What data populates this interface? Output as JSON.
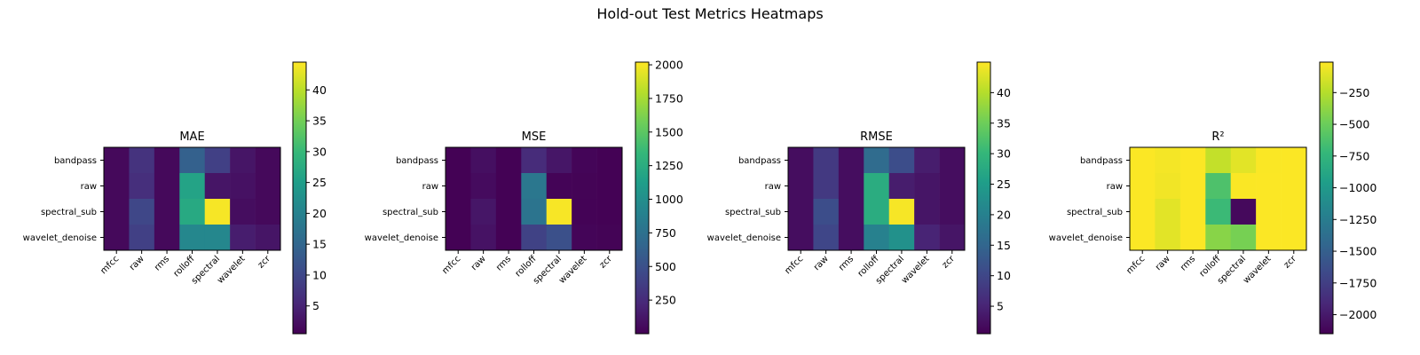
{
  "figure": {
    "title": "Hold-out Test Metrics Heatmaps"
  },
  "colormap": [
    "#440154",
    "#482878",
    "#3e4989",
    "#31688e",
    "#26828e",
    "#1f9e89",
    "#35b779",
    "#6ece58",
    "#b5de2b",
    "#fde725"
  ],
  "chart_data": [
    {
      "type": "heatmap",
      "title": "MAE",
      "rows": [
        "bandpass",
        "raw",
        "spectral_sub",
        "wavelet_denoise"
      ],
      "columns": [
        "mfcc",
        "raw",
        "rms",
        "rolloff",
        "spectral",
        "wavelet",
        "zcr"
      ],
      "values": [
        [
          1.5,
          7,
          1.5,
          14,
          9,
          3,
          1.5
        ],
        [
          1.5,
          6.5,
          1.5,
          26,
          3,
          2.5,
          1.5
        ],
        [
          1.5,
          10,
          1.5,
          27,
          44,
          2,
          1.5
        ],
        [
          1.5,
          9,
          1.5,
          21,
          21,
          4,
          3
        ]
      ],
      "colorbar": {
        "min": 0.5,
        "max": 44.5,
        "ticks": [
          "5",
          "10",
          "15",
          "20",
          "25",
          "30",
          "35",
          "40"
        ],
        "tick_values": [
          5,
          10,
          15,
          20,
          25,
          30,
          35,
          40
        ]
      }
    },
    {
      "type": "heatmap",
      "title": "MSE",
      "rows": [
        "bandpass",
        "raw",
        "spectral_sub",
        "wavelet_denoise"
      ],
      "columns": [
        "mfcc",
        "raw",
        "rms",
        "rolloff",
        "spectral",
        "wavelet",
        "zcr"
      ],
      "values": [
        [
          5,
          80,
          5,
          250,
          120,
          25,
          5
        ],
        [
          5,
          60,
          5,
          800,
          20,
          15,
          5
        ],
        [
          5,
          120,
          5,
          780,
          2000,
          10,
          5
        ],
        [
          5,
          100,
          5,
          400,
          500,
          25,
          15
        ]
      ],
      "colorbar": {
        "min": 0,
        "max": 2020,
        "ticks": [
          "250",
          "500",
          "750",
          "1000",
          "1250",
          "1500",
          "1750",
          "2000"
        ],
        "tick_values": [
          250,
          500,
          750,
          1000,
          1250,
          1500,
          1750,
          2000
        ]
      }
    },
    {
      "type": "heatmap",
      "title": "RMSE",
      "rows": [
        "bandpass",
        "raw",
        "spectral_sub",
        "wavelet_denoise"
      ],
      "columns": [
        "mfcc",
        "raw",
        "rms",
        "rolloff",
        "spectral",
        "wavelet",
        "zcr"
      ],
      "values": [
        [
          2,
          8,
          2,
          16,
          11,
          4,
          2
        ],
        [
          2,
          8,
          2,
          28,
          4,
          3,
          2
        ],
        [
          2,
          11,
          2,
          28,
          44.5,
          3,
          2
        ],
        [
          2,
          10,
          2,
          20,
          23,
          5,
          3
        ]
      ],
      "colorbar": {
        "min": 0.5,
        "max": 45,
        "ticks": [
          "5",
          "10",
          "15",
          "20",
          "25",
          "30",
          "35",
          "40"
        ],
        "tick_values": [
          5,
          10,
          15,
          20,
          25,
          30,
          35,
          40
        ]
      }
    },
    {
      "type": "heatmap",
      "title": "R²",
      "rows": [
        "bandpass",
        "raw",
        "spectral_sub",
        "wavelet_denoise"
      ],
      "columns": [
        "mfcc",
        "raw",
        "rms",
        "rolloff",
        "spectral",
        "wavelet",
        "zcr"
      ],
      "values": [
        [
          -15,
          -40,
          -15,
          -200,
          -100,
          -20,
          -15
        ],
        [
          -15,
          -50,
          -15,
          -620,
          -20,
          -15,
          -15
        ],
        [
          -15,
          -100,
          -15,
          -700,
          -2100,
          -15,
          -15
        ],
        [
          -15,
          -100,
          -15,
          -400,
          -460,
          -15,
          -15
        ]
      ],
      "colorbar": {
        "min": -2150,
        "max": -10,
        "ticks": [
          "−2000",
          "−1750",
          "−1500",
          "−1250",
          "−1000",
          "−750",
          "−500",
          "−250"
        ],
        "tick_values": [
          -2000,
          -1750,
          -1500,
          -1250,
          -1000,
          -750,
          -500,
          -250
        ]
      }
    }
  ]
}
